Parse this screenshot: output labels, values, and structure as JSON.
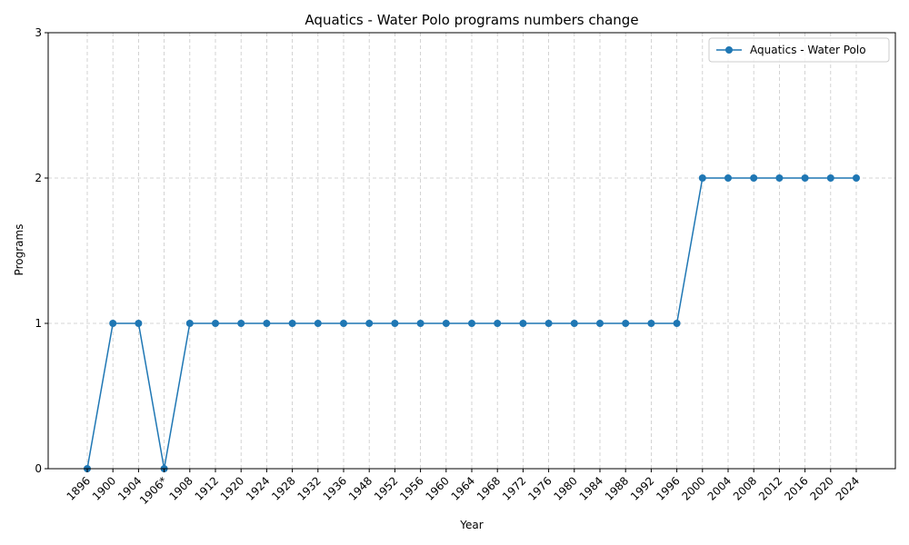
{
  "chart_data": {
    "type": "line",
    "title": "Aquatics - Water Polo programs numbers change",
    "xlabel": "Year",
    "ylabel": "Programs",
    "categories": [
      "1896",
      "1900",
      "1904",
      "1906*",
      "1908",
      "1912",
      "1920",
      "1924",
      "1928",
      "1932",
      "1936",
      "1948",
      "1952",
      "1956",
      "1960",
      "1964",
      "1968",
      "1972",
      "1976",
      "1980",
      "1984",
      "1988",
      "1992",
      "1996",
      "2000",
      "2004",
      "2008",
      "2012",
      "2016",
      "2020",
      "2024"
    ],
    "series": [
      {
        "name": "Aquatics - Water Polo",
        "color": "#1f77b4",
        "marker": "circle",
        "values": [
          0,
          1,
          1,
          0,
          1,
          1,
          1,
          1,
          1,
          1,
          1,
          1,
          1,
          1,
          1,
          1,
          1,
          1,
          1,
          1,
          1,
          1,
          1,
          1,
          2,
          2,
          2,
          2,
          2,
          2,
          2
        ]
      }
    ],
    "ylim": [
      0,
      3
    ],
    "yticks": [
      0,
      1,
      2,
      3
    ],
    "grid": true,
    "grid_color": "#b0b0b0",
    "legend_position": "top-right",
    "xtick_rotation": 45
  }
}
